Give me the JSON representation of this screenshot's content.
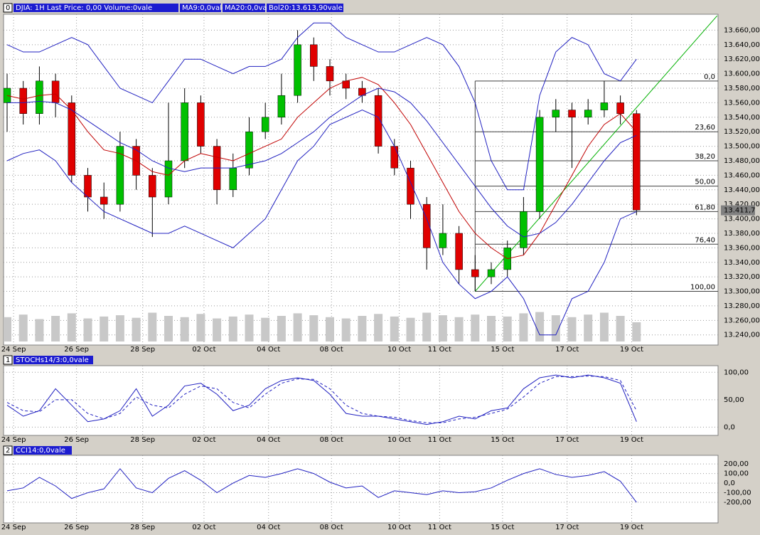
{
  "header": {
    "panel_ids": [
      "0",
      "1",
      "2"
    ],
    "main": [
      "DJIA: 1H Last Price: 0,00 Volume:0vale",
      "MA9:0,0vale",
      "MA20:0,0vale",
      "Bol20:13.613,90vale"
    ],
    "stoch": "STOCHs14/3:0,0vale",
    "cci": "CCI14:0,0vale"
  },
  "chart_data": [
    {
      "type": "candlestick",
      "open": [
        13560,
        13580,
        13545,
        13590,
        13560,
        13460,
        13430,
        13420,
        13500,
        13460,
        13430,
        13480,
        13560,
        13500,
        13440,
        13470,
        13520,
        13540,
        13570,
        13640,
        13610,
        13590,
        13580,
        13570,
        13500,
        13470,
        13420,
        13360,
        13380,
        13330,
        13320,
        13330,
        13360,
        13410,
        13540,
        13550,
        13540,
        13550,
        13560,
        13545
      ],
      "high": [
        13600,
        13590,
        13610,
        13600,
        13570,
        13470,
        13450,
        13520,
        13510,
        13470,
        13560,
        13580,
        13570,
        13510,
        13490,
        13540,
        13560,
        13600,
        13660,
        13650,
        13620,
        13600,
        13590,
        13580,
        13510,
        13480,
        13430,
        13420,
        13390,
        13350,
        13340,
        13370,
        13430,
        13550,
        13565,
        13560,
        13565,
        13590,
        13570,
        13550
      ],
      "low": [
        13520,
        13530,
        13530,
        13540,
        13450,
        13410,
        13400,
        13410,
        13440,
        13375,
        13420,
        13470,
        13490,
        13420,
        13430,
        13460,
        13510,
        13530,
        13560,
        13590,
        13570,
        13565,
        13560,
        13490,
        13460,
        13400,
        13330,
        13350,
        13310,
        13300,
        13310,
        13320,
        13350,
        13400,
        13520,
        13470,
        13530,
        13540,
        13530,
        13405
      ],
      "close": [
        13580,
        13545,
        13590,
        13560,
        13460,
        13430,
        13420,
        13500,
        13460,
        13430,
        13480,
        13560,
        13500,
        13440,
        13470,
        13520,
        13540,
        13570,
        13640,
        13610,
        13590,
        13580,
        13570,
        13500,
        13470,
        13420,
        13360,
        13380,
        13330,
        13320,
        13330,
        13360,
        13410,
        13540,
        13550,
        13540,
        13550,
        13560,
        13545,
        13412
      ],
      "volume": [
        38,
        42,
        35,
        40,
        44,
        36,
        39,
        41,
        37,
        45,
        40,
        38,
        43,
        36,
        39,
        42,
        37,
        40,
        44,
        41,
        38,
        36,
        40,
        43,
        39,
        37,
        45,
        41,
        38,
        42,
        40,
        39,
        44,
        46,
        41,
        38,
        42,
        45,
        40,
        30
      ],
      "up_color": "#00c000",
      "down_color": "#e00000",
      "volume_color": "#c8c8c8",
      "series": [
        {
          "name": "MA9",
          "color": "#c00000",
          "values": [
            13570,
            13565,
            13570,
            13572,
            13550,
            13520,
            13495,
            13490,
            13480,
            13465,
            13460,
            13480,
            13490,
            13485,
            13480,
            13490,
            13500,
            13510,
            13540,
            13560,
            13580,
            13590,
            13595,
            13585,
            13560,
            13530,
            13490,
            13450,
            13410,
            13380,
            13360,
            13345,
            13350,
            13380,
            13420,
            13460,
            13500,
            13530,
            13545,
            13520
          ]
        },
        {
          "name": "MA20",
          "color": "#2020c0",
          "values": [
            13560,
            13560,
            13562,
            13560,
            13550,
            13535,
            13520,
            13505,
            13495,
            13480,
            13470,
            13465,
            13470,
            13470,
            13470,
            13475,
            13480,
            13490,
            13505,
            13520,
            13540,
            13555,
            13570,
            13580,
            13575,
            13560,
            13535,
            13505,
            13475,
            13445,
            13415,
            13390,
            13375,
            13380,
            13395,
            13420,
            13450,
            13480,
            13505,
            13515
          ]
        },
        {
          "color": "#2020c0",
          "values": [
            13640,
            13630,
            13630,
            13640,
            13650,
            13640,
            13610,
            13580,
            13570,
            13560,
            13590,
            13620,
            13620,
            13610,
            13600,
            13610,
            13610,
            13620,
            13650,
            13670,
            13670,
            13650,
            13640,
            13630,
            13630,
            13640,
            13650,
            13640,
            13610,
            13560,
            13480,
            13440,
            13440,
            13570,
            13630,
            13650,
            13640,
            13600,
            13590,
            13620
          ]
        },
        {
          "color": "#2020c0",
          "values": [
            13480,
            13490,
            13495,
            13480,
            13450,
            13430,
            13410,
            13400,
            13390,
            13380,
            13380,
            13390,
            13380,
            13370,
            13360,
            13380,
            13400,
            13440,
            13480,
            13500,
            13530,
            13540,
            13550,
            13540,
            13500,
            13450,
            13400,
            13340,
            13310,
            13290,
            13300,
            13320,
            13290,
            13240,
            13240,
            13290,
            13300,
            13340,
            13400,
            13410
          ]
        }
      ],
      "ylim": [
        13226,
        13682
      ],
      "yticks": [
        {
          "value": 13240,
          "label": "13.240,00"
        },
        {
          "value": 13260,
          "label": "13.260,00"
        },
        {
          "value": 13280,
          "label": "13.280,00"
        },
        {
          "value": 13300,
          "label": "13.300,00"
        },
        {
          "value": 13320,
          "label": "13.320,00"
        },
        {
          "value": 13340,
          "label": "13.340,00"
        },
        {
          "value": 13360,
          "label": "13.360,00"
        },
        {
          "value": 13380,
          "label": "13.380,00"
        },
        {
          "value": 13400,
          "label": "13.400,00"
        },
        {
          "value": 13420,
          "label": "13.420,00"
        },
        {
          "value": 13440,
          "label": "13.440,00"
        },
        {
          "value": 13460,
          "label": "13.460,00"
        },
        {
          "value": 13480,
          "label": "13.480,00"
        },
        {
          "value": 13500,
          "label": "13.500,00"
        },
        {
          "value": 13520,
          "label": "13.520,00"
        },
        {
          "value": 13540,
          "label": "13.540,00"
        },
        {
          "value": 13560,
          "label": "13.560,00"
        },
        {
          "value": 13580,
          "label": "13.580,00"
        },
        {
          "value": 13600,
          "label": "13.600,00"
        },
        {
          "value": 13620,
          "label": "13.620,00"
        },
        {
          "value": 13640,
          "label": "13.640,00"
        },
        {
          "value": 13660,
          "label": "13.660,00"
        }
      ],
      "xticks": [
        {
          "value": 0.4,
          "label": "24 Sep"
        },
        {
          "value": 4.3,
          "label": "26 Sep"
        },
        {
          "value": 8.4,
          "label": "28 Sep"
        },
        {
          "value": 12.2,
          "label": "02 Oct"
        },
        {
          "value": 16.2,
          "label": "04 Oct"
        },
        {
          "value": 20.1,
          "label": "08 Oct"
        },
        {
          "value": 24.3,
          "label": "10 Oct"
        },
        {
          "value": 26.8,
          "label": "11 Oct"
        },
        {
          "value": 30.7,
          "label": "15 Oct"
        },
        {
          "value": 34.7,
          "label": "17 Oct"
        },
        {
          "value": 38.7,
          "label": "19 Oct"
        }
      ],
      "last_price": {
        "value": 13411.7,
        "label": "13.411,7"
      },
      "fibonacci": {
        "start": 29,
        "color": "#404040",
        "levels": [
          {
            "value": 13590,
            "label": "0,0"
          },
          {
            "value": 13520,
            "label": "23,60"
          },
          {
            "value": 13480,
            "label": "38,20"
          },
          {
            "value": 13445,
            "label": "50,00"
          },
          {
            "value": 13410,
            "label": "61,80"
          },
          {
            "value": 13365,
            "label": "76,40"
          },
          {
            "value": 13300,
            "label": "100,00"
          }
        ]
      },
      "trendline": {
        "color": "#00b000",
        "x": [
          29,
          44
        ],
        "y": [
          13300,
          13680
        ]
      },
      "grid": true
    },
    {
      "type": "line",
      "series": [
        {
          "color": "#2020c0",
          "values": [
            40,
            20,
            30,
            70,
            40,
            10,
            15,
            30,
            70,
            20,
            40,
            75,
            80,
            60,
            30,
            40,
            70,
            85,
            90,
            85,
            60,
            25,
            20,
            20,
            15,
            10,
            5,
            10,
            20,
            15,
            30,
            35,
            70,
            90,
            95,
            90,
            95,
            90,
            80,
            10
          ]
        },
        {
          "color": "#2020c0",
          "dashed": true,
          "values": [
            45,
            30,
            28,
            50,
            50,
            25,
            15,
            25,
            55,
            40,
            35,
            60,
            75,
            70,
            45,
            35,
            60,
            80,
            88,
            87,
            70,
            40,
            25,
            20,
            18,
            12,
            8,
            8,
            15,
            18,
            25,
            33,
            55,
            80,
            92,
            92,
            93,
            92,
            85,
            30
          ]
        }
      ],
      "ylim": [
        -15,
        112
      ],
      "yticks": [
        {
          "value": 0,
          "label": "0,0"
        },
        {
          "value": 50,
          "label": "50,00"
        },
        {
          "value": 100,
          "label": "100,00"
        }
      ],
      "grid": true
    },
    {
      "type": "line",
      "series": [
        {
          "color": "#2020c0",
          "values": [
            -80,
            -50,
            60,
            -30,
            -160,
            -100,
            -60,
            150,
            -50,
            -100,
            50,
            130,
            30,
            -100,
            0,
            80,
            60,
            100,
            150,
            100,
            10,
            -50,
            -30,
            -150,
            -80,
            -100,
            -120,
            -80,
            -100,
            -90,
            -50,
            30,
            100,
            150,
            90,
            60,
            80,
            120,
            20,
            -200
          ]
        }
      ],
      "ylim": [
        -415,
        290
      ],
      "yticks": [
        {
          "value": -200,
          "label": "-200,00"
        },
        {
          "value": -100,
          "label": "-100,00"
        },
        {
          "value": 0,
          "label": "0,0"
        },
        {
          "value": 100,
          "label": "100,00"
        },
        {
          "value": 200,
          "label": "200,00"
        }
      ],
      "grid": true
    }
  ]
}
